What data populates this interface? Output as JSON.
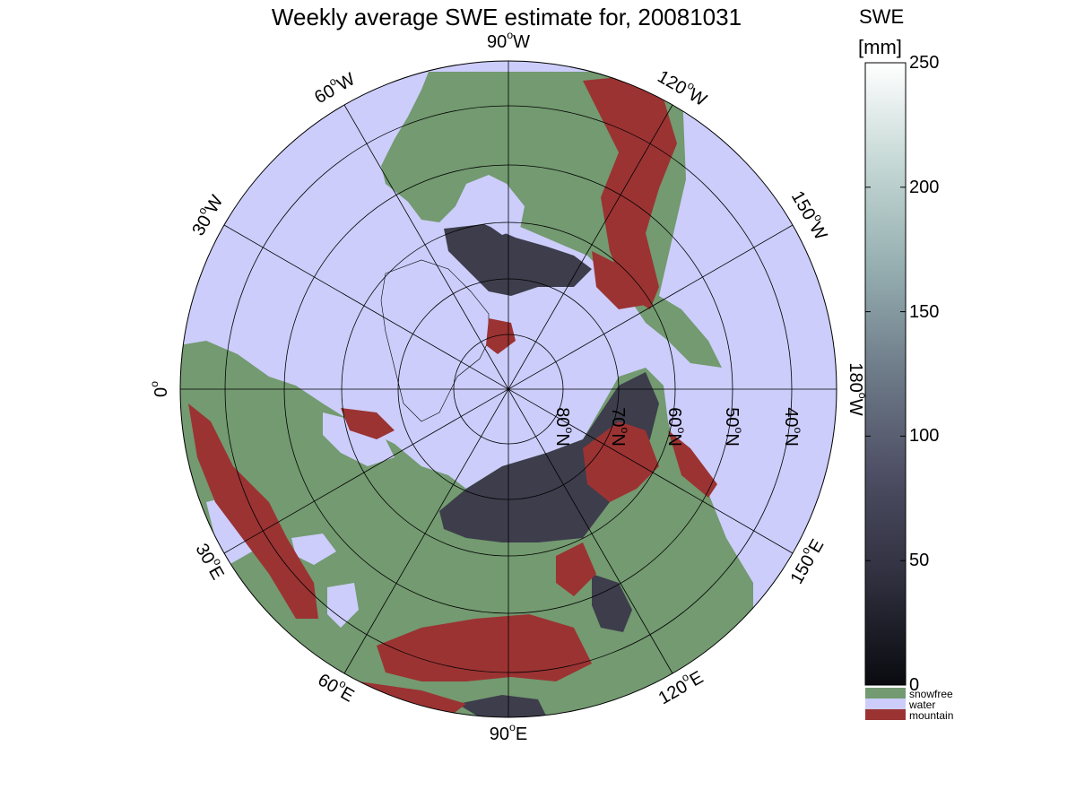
{
  "title": "Weekly average SWE estimate for, 20081031",
  "colorbar": {
    "title_line1": "SWE",
    "title_line2": "[mm]",
    "ticks": [
      "0",
      "50",
      "100",
      "150",
      "200",
      "250"
    ],
    "tick_values": [
      0,
      50,
      100,
      150,
      200,
      250
    ],
    "range": [
      0,
      250
    ],
    "gradient_colors": [
      "#0a0a10",
      "#2f2f3e",
      "#4c4c62",
      "#6d7a88",
      "#95aeb0",
      "#c2d6d3",
      "#ffffff"
    ],
    "categories": [
      {
        "label": "snowfree",
        "color": "#739a70"
      },
      {
        "label": "water",
        "color": "#cccdfb"
      },
      {
        "label": "mountain",
        "color": "#9b3333"
      }
    ]
  },
  "map": {
    "projection": "north polar stereographic",
    "colors": {
      "land": "#739a70",
      "water": "#cccdfb",
      "mountain": "#9b3333",
      "snow": "#3d3d4c",
      "snow_light": "#5b5d72"
    },
    "longitude_labels": [
      {
        "base": "90",
        "sup": "o",
        "suffix": "W",
        "lon": -90
      },
      {
        "base": "120",
        "sup": "o",
        "suffix": "W",
        "lon": -120
      },
      {
        "base": "150",
        "sup": "o",
        "suffix": "W",
        "lon": -150
      },
      {
        "base": "180",
        "sup": "o",
        "suffix": "W",
        "lon": 180
      },
      {
        "base": "150",
        "sup": "o",
        "suffix": "E",
        "lon": 150
      },
      {
        "base": "120",
        "sup": "o",
        "suffix": "E",
        "lon": 120
      },
      {
        "base": "90",
        "sup": "o",
        "suffix": "E",
        "lon": 90
      },
      {
        "base": "60",
        "sup": "o",
        "suffix": "E",
        "lon": 60
      },
      {
        "base": "30",
        "sup": "o",
        "suffix": "E",
        "lon": 30
      },
      {
        "base": "0",
        "sup": "o",
        "suffix": "",
        "lon": 0
      },
      {
        "base": "30",
        "sup": "o",
        "suffix": "W",
        "lon": -30
      },
      {
        "base": "60",
        "sup": "o",
        "suffix": "W",
        "lon": -60
      }
    ],
    "latitude_labels": [
      {
        "base": "80",
        "sup": "o",
        "suffix": "N",
        "lat": 80
      },
      {
        "base": "70",
        "sup": "o",
        "suffix": "N",
        "lat": 70
      },
      {
        "base": "60",
        "sup": "o",
        "suffix": "N",
        "lat": 60
      },
      {
        "base": "50",
        "sup": "o",
        "suffix": "N",
        "lat": 50
      },
      {
        "base": "40",
        "sup": "o",
        "suffix": "N",
        "lat": 40
      }
    ]
  }
}
